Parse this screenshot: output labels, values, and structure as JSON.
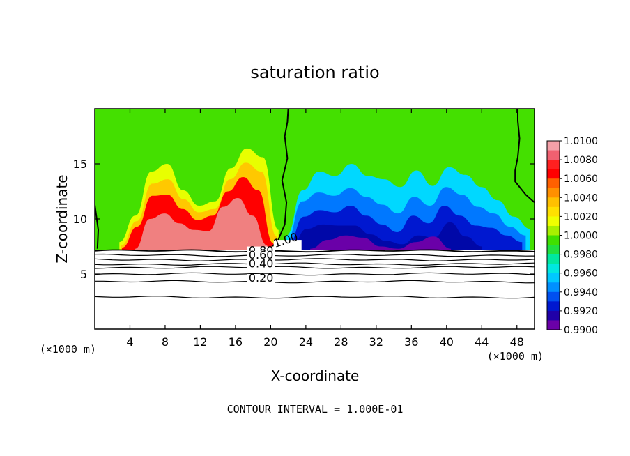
{
  "chart_data": {
    "type": "heatmap",
    "title": "saturation ratio",
    "xlabel": "X-coordinate",
    "ylabel": "Z-coordinate",
    "x_unit_left": "(×1000 m)",
    "x_unit_right": "(×1000 m)",
    "xlim": [
      0,
      50
    ],
    "ylim": [
      0,
      20
    ],
    "x_ticks": [
      4,
      8,
      12,
      16,
      20,
      24,
      28,
      32,
      36,
      40,
      44,
      48
    ],
    "y_ticks": [
      5,
      10,
      15
    ],
    "footer": "CONTOUR INTERVAL = 1.000E-01",
    "colorbar": {
      "labels": [
        "1.0100",
        "1.0080",
        "1.0060",
        "1.0040",
        "1.0020",
        "1.0000",
        "0.9980",
        "0.9960",
        "0.9940",
        "0.9920",
        "0.9900"
      ],
      "colors": [
        "#f08080",
        "#ff0000",
        "#ff6a00",
        "#ffc800",
        "#e8ff00",
        "#44e000",
        "#00e8a0",
        "#00d8ff",
        "#0078ff",
        "#0018d0",
        "#6a00a8"
      ]
    },
    "contours": [
      {
        "label": "1.00",
        "level": 1.0
      },
      {
        "label": "0.80",
        "level": 0.8
      },
      {
        "label": "0.60",
        "level": 0.6
      },
      {
        "label": "0.40",
        "level": 0.4
      },
      {
        "label": "0.20",
        "level": 0.2
      }
    ],
    "layers": [
      {
        "band": "yellow",
        "x_from": 2.8,
        "x_to": 20.9,
        "ztop": [
          7.9,
          10.3,
          14.3,
          15.0,
          12.6,
          11.2,
          11.6,
          14.6,
          16.4,
          15.6,
          9.0
        ]
      },
      {
        "band": "orange",
        "x_from": 3.0,
        "x_to": 20.7,
        "ztop": [
          7.6,
          9.8,
          13.2,
          13.6,
          11.8,
          10.6,
          10.9,
          13.6,
          15.1,
          14.3,
          8.4
        ]
      },
      {
        "band": "red",
        "x_from": 3.1,
        "x_to": 20.3,
        "ztop": [
          7.4,
          9.3,
          12.1,
          12.2,
          10.9,
          9.9,
          10.3,
          12.5,
          13.8,
          12.6,
          7.8
        ]
      },
      {
        "band": "pink",
        "x_from": 4.6,
        "x_to": 19.6,
        "ztop": [
          7.3,
          10.0,
          10.5,
          9.6,
          9.0,
          8.9,
          11.1,
          11.9,
          10.3,
          7.6
        ]
      },
      {
        "band": "cyan",
        "x_from": 21.8,
        "x_to": 49.5,
        "ztop": [
          8.5,
          12.6,
          14.3,
          13.9,
          15.0,
          13.9,
          13.6,
          12.9,
          14.4,
          13.0,
          14.7,
          14.0,
          12.9,
          11.7,
          10.2,
          9.1
        ]
      },
      {
        "band": "lightblue",
        "x_from": 21.8,
        "x_to": 49.0,
        "ztop": [
          8.0,
          11.6,
          12.4,
          12.1,
          12.8,
          12.0,
          11.3,
          10.5,
          12.0,
          11.2,
          12.9,
          12.2,
          11.1,
          10.5,
          9.3,
          8.5
        ]
      },
      {
        "band": "blue",
        "x_from": 22.0,
        "x_to": 48.6,
        "ztop": [
          7.6,
          10.2,
          10.8,
          10.6,
          11.2,
          10.3,
          9.5,
          8.8,
          10.3,
          9.6,
          11.2,
          10.3,
          9.4,
          9.2,
          8.5,
          7.9
        ]
      },
      {
        "band": "darkblue",
        "x_from": 22.3,
        "x_to": 44.0,
        "ztop": [
          7.4,
          9.1,
          9.5,
          9.4,
          9.4,
          8.6,
          8.0,
          7.7,
          8.5,
          8.3,
          9.7,
          8.4,
          7.5
        ]
      },
      {
        "band": "purple",
        "x_from": 24.5,
        "x_to": 40.5,
        "ztop": [
          7.3,
          8.1,
          8.5,
          8.3,
          7.5,
          7.3,
          7.9,
          8.4,
          7.3
        ]
      }
    ],
    "boundary_1_00_left": {
      "x": [
        19.8,
        20.8,
        21.6,
        21.8,
        21.3,
        21.9,
        21.6,
        21.9,
        22.0
      ],
      "z": [
        7.2,
        8.0,
        9.5,
        11.5,
        13.5,
        15.5,
        17.5,
        18.8,
        20.0
      ]
    },
    "boundary_1_00_right": {
      "x": [
        50,
        49.0,
        47.8,
        47.8,
        48.1,
        48.3,
        48.1,
        48.1
      ],
      "z": [
        11.5,
        12.2,
        13.4,
        14.4,
        15.6,
        17.3,
        18.9,
        20.0
      ]
    },
    "boundary_1_00_corner": {
      "x": [
        0.3,
        0.4,
        0.0
      ],
      "z": [
        7.3,
        9.0,
        11.3
      ]
    },
    "contour_lines_z": [
      7.1,
      6.7,
      6.3,
      5.9,
      5.6,
      5.0,
      4.3,
      2.9
    ]
  }
}
